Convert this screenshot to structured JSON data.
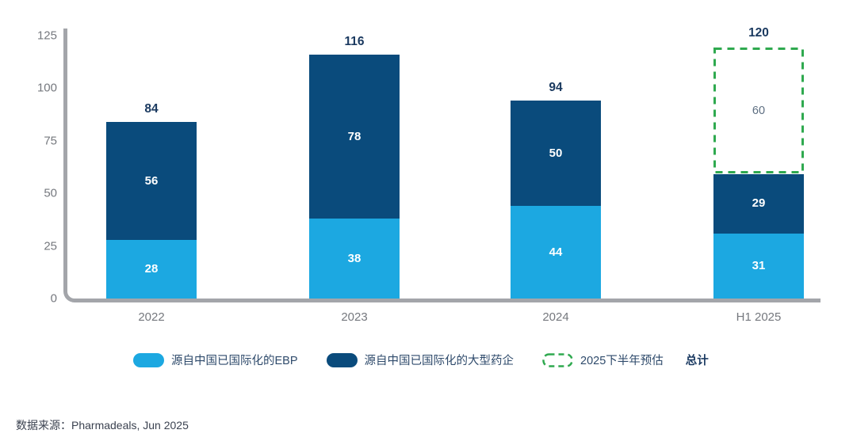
{
  "chart_data": {
    "type": "bar",
    "stacked": true,
    "title": "",
    "xlabel": "",
    "ylabel": "",
    "ylim": [
      0,
      125
    ],
    "yticks": [
      0,
      25,
      50,
      75,
      100,
      125
    ],
    "grid": false,
    "legend_position": "bottom",
    "categories": [
      "2022",
      "2023",
      "2024",
      "H1 2025"
    ],
    "series": [
      {
        "name": "源自中国已国际化的EBP",
        "color": "#1CA8E1",
        "values": [
          28,
          38,
          44,
          31
        ]
      },
      {
        "name": "源自中国已国际化的大型药企",
        "color": "#0A4B7C",
        "values": [
          56,
          78,
          50,
          29
        ]
      }
    ],
    "forecast": {
      "name": "2025下半年预估",
      "color": "#2FA94F",
      "style": "dashed-outline",
      "category": "H1 2025",
      "value": 60
    },
    "totals": [
      84,
      116,
      94,
      120
    ],
    "legend": {
      "items": [
        {
          "label": "源自中国已国际化的EBP",
          "swatch": "solid",
          "color": "#1CA8E1"
        },
        {
          "label": "源自中国已国际化的大型药企",
          "swatch": "solid",
          "color": "#0A4B7C"
        },
        {
          "label": "2025下半年预估",
          "swatch": "dashed-outline",
          "color": "#2FA94F"
        }
      ],
      "total_label": "总计"
    },
    "colors": {
      "axis": "#A3A5AA",
      "tick_text": "#75787E",
      "total_text": "#1B3A60",
      "segment_text": "#FFFFFF",
      "forecast_text": "#5D6E81"
    }
  },
  "source": {
    "text": "数据来源：Pharmadeals, Jun 2025"
  }
}
